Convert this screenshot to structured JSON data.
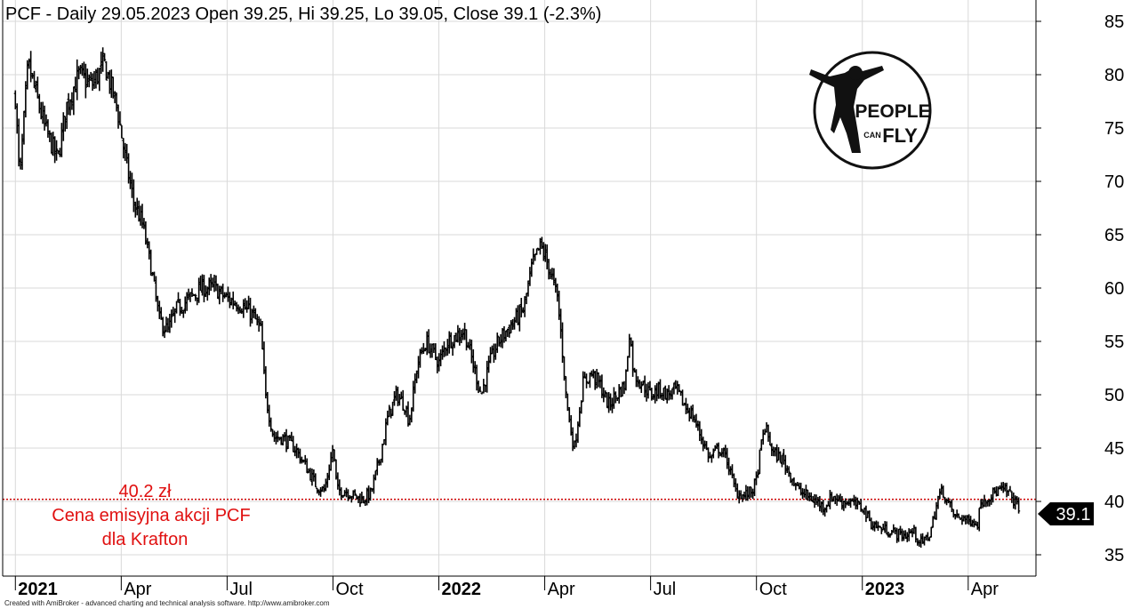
{
  "chart_data": {
    "type": "bar",
    "subtype": "ohlc",
    "title": "PCF - Daily 29.05.2023 Open 39.25, Hi 39.25, Lo 39.05, Close 39.1 (-2.3%)",
    "ylim": [
      33,
      87
    ],
    "y_ticks": [
      35,
      40,
      45,
      50,
      55,
      60,
      65,
      70,
      75,
      80,
      85
    ],
    "y_axis_position": "right",
    "grid": true,
    "x_labels": [
      {
        "label": "2021",
        "year": true,
        "t": 0
      },
      {
        "label": "Apr",
        "year": false,
        "t": 0.25
      },
      {
        "label": "Jul",
        "year": false,
        "t": 0.5
      },
      {
        "label": "Oct",
        "year": false,
        "t": 0.75
      },
      {
        "label": "2022",
        "year": true,
        "t": 1
      },
      {
        "label": "Apr",
        "year": false,
        "t": 1.25
      },
      {
        "label": "Jul",
        "year": false,
        "t": 1.5
      },
      {
        "label": "Oct",
        "year": false,
        "t": 1.75
      },
      {
        "label": "2023",
        "year": true,
        "t": 2
      },
      {
        "label": "Apr",
        "year": false,
        "t": 2.25
      }
    ],
    "x_range": [
      -0.03,
      2.41
    ],
    "price_path": [
      [
        0.0,
        78
      ],
      [
        0.01,
        70
      ],
      [
        0.03,
        81
      ],
      [
        0.05,
        78
      ],
      [
        0.07,
        75
      ],
      [
        0.1,
        72
      ],
      [
        0.12,
        77
      ],
      [
        0.15,
        80
      ],
      [
        0.18,
        79
      ],
      [
        0.21,
        81
      ],
      [
        0.24,
        77
      ],
      [
        0.26,
        72
      ],
      [
        0.28,
        68
      ],
      [
        0.3,
        66
      ],
      [
        0.32,
        62
      ],
      [
        0.34,
        57
      ],
      [
        0.36,
        56
      ],
      [
        0.38,
        58
      ],
      [
        0.41,
        59
      ],
      [
        0.44,
        60
      ],
      [
        0.47,
        60
      ],
      [
        0.5,
        59
      ],
      [
        0.53,
        58.5
      ],
      [
        0.56,
        57.5
      ],
      [
        0.58,
        56
      ],
      [
        0.59,
        50
      ],
      [
        0.61,
        46
      ],
      [
        0.63,
        46
      ],
      [
        0.66,
        45
      ],
      [
        0.69,
        43
      ],
      [
        0.71,
        41.5
      ],
      [
        0.73,
        41
      ],
      [
        0.74,
        43
      ],
      [
        0.75,
        45
      ],
      [
        0.76,
        41
      ],
      [
        0.78,
        41
      ],
      [
        0.8,
        40.5
      ],
      [
        0.82,
        40.2
      ],
      [
        0.84,
        40.8
      ],
      [
        0.86,
        44
      ],
      [
        0.88,
        48
      ],
      [
        0.9,
        50
      ],
      [
        0.92,
        49
      ],
      [
        0.93,
        47.5
      ],
      [
        0.95,
        53
      ],
      [
        0.97,
        55
      ],
      [
        1.0,
        53
      ],
      [
        1.02,
        55
      ],
      [
        1.04,
        55.5
      ],
      [
        1.06,
        56
      ],
      [
        1.08,
        53
      ],
      [
        1.1,
        50
      ],
      [
        1.12,
        53
      ],
      [
        1.14,
        55
      ],
      [
        1.16,
        56
      ],
      [
        1.18,
        57
      ],
      [
        1.2,
        58
      ],
      [
        1.22,
        62
      ],
      [
        1.24,
        64
      ],
      [
        1.26,
        62
      ],
      [
        1.28,
        59
      ],
      [
        1.29,
        55
      ],
      [
        1.3,
        50
      ],
      [
        1.31,
        47
      ],
      [
        1.32,
        45
      ],
      [
        1.34,
        51
      ],
      [
        1.36,
        52
      ],
      [
        1.38,
        51
      ],
      [
        1.4,
        49
      ],
      [
        1.42,
        50
      ],
      [
        1.44,
        51
      ],
      [
        1.45,
        56
      ],
      [
        1.46,
        52
      ],
      [
        1.48,
        51
      ],
      [
        1.5,
        50
      ],
      [
        1.52,
        50.5
      ],
      [
        1.54,
        50
      ],
      [
        1.56,
        50.5
      ],
      [
        1.58,
        49
      ],
      [
        1.6,
        48
      ],
      [
        1.62,
        46
      ],
      [
        1.64,
        44
      ],
      [
        1.66,
        45
      ],
      [
        1.68,
        44
      ],
      [
        1.7,
        41
      ],
      [
        1.72,
        40.5
      ],
      [
        1.74,
        41
      ],
      [
        1.75,
        42
      ],
      [
        1.76,
        45
      ],
      [
        1.77,
        47
      ],
      [
        1.79,
        44.5
      ],
      [
        1.81,
        44
      ],
      [
        1.83,
        42.5
      ],
      [
        1.85,
        41
      ],
      [
        1.87,
        40.5
      ],
      [
        1.89,
        40
      ],
      [
        1.91,
        39.5
      ],
      [
        1.93,
        40.5
      ],
      [
        1.95,
        40
      ],
      [
        1.97,
        40
      ],
      [
        1.99,
        39.5
      ],
      [
        2.0,
        39.5
      ],
      [
        2.02,
        38
      ],
      [
        2.04,
        37.5
      ],
      [
        2.06,
        37.3
      ],
      [
        2.08,
        37
      ],
      [
        2.1,
        36.8
      ],
      [
        2.12,
        37.2
      ],
      [
        2.14,
        36
      ],
      [
        2.16,
        37
      ],
      [
        2.18,
        40.5
      ],
      [
        2.19,
        41
      ],
      [
        2.2,
        40
      ],
      [
        2.22,
        38.5
      ],
      [
        2.24,
        38.5
      ],
      [
        2.25,
        38
      ],
      [
        2.26,
        38.5
      ],
      [
        2.27,
        37.5
      ],
      [
        2.28,
        40
      ],
      [
        2.3,
        40.5
      ],
      [
        2.32,
        41
      ],
      [
        2.34,
        41
      ],
      [
        2.36,
        40
      ],
      [
        2.37,
        39.1
      ]
    ],
    "last_close": 39.1,
    "last_close_label": "39.1",
    "reference_line": {
      "value": 40.2,
      "label_value": "40.2 zł",
      "label_line2": "Cena emisyjna akcji PCF",
      "label_line3": "dla Krafton",
      "color": "#cc0000"
    },
    "colors": {
      "bars": "#000000",
      "grid": "#d9d9d9",
      "reference": "#cc0000",
      "annotation_text": "#e01010",
      "last_label_bg": "#000000"
    }
  },
  "logo": {
    "line1": "PEOPLE",
    "line2": "CAN",
    "line3": "FLY"
  },
  "footer": "Created with AmiBroker - advanced charting and technical analysis software. http://www.amibroker.com"
}
